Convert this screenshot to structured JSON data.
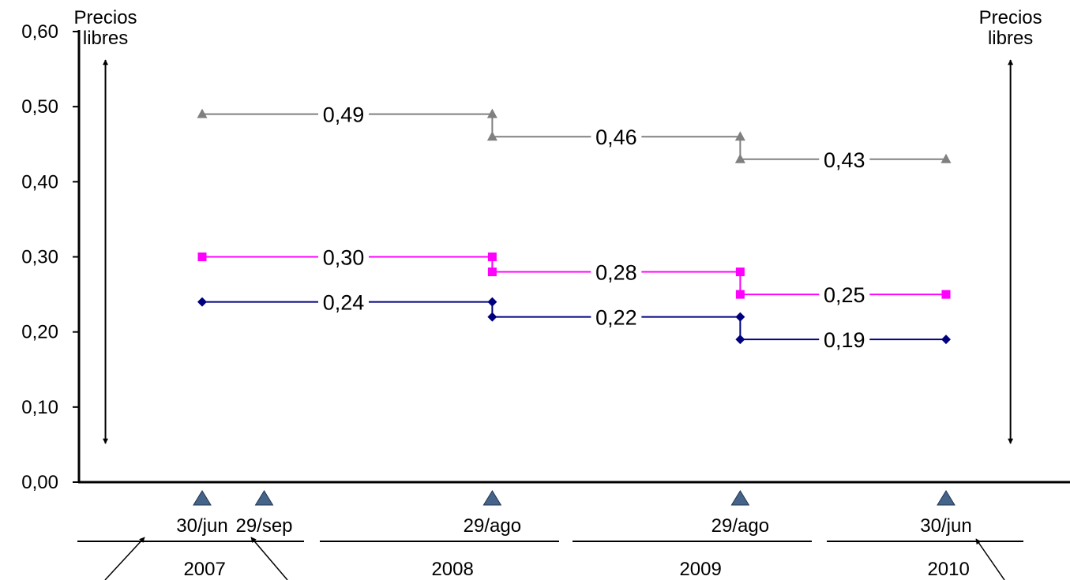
{
  "chart_data": {
    "type": "line",
    "step": true,
    "ylim": [
      0,
      0.6
    ],
    "yticks": [
      "0,00",
      "0,10",
      "0,20",
      "0,30",
      "0,40",
      "0,50",
      "0,60"
    ],
    "grid": false,
    "legend": "none",
    "series": [
      {
        "color": "#808080",
        "marker": "triangle",
        "points": [
          [
            2007.49,
            0.49
          ],
          [
            2008.66,
            0.49
          ],
          [
            2008.66,
            0.46
          ],
          [
            2009.66,
            0.46
          ],
          [
            2009.66,
            0.43
          ],
          [
            2010.49,
            0.43
          ]
        ],
        "labels": [
          {
            "text": "0,49",
            "x": 2008.06,
            "y": 0.49
          },
          {
            "text": "0,46",
            "x": 2009.16,
            "y": 0.46
          },
          {
            "text": "0,43",
            "x": 2010.08,
            "y": 0.43
          }
        ]
      },
      {
        "color": "#ff00ff",
        "marker": "square",
        "points": [
          [
            2007.49,
            0.3
          ],
          [
            2008.66,
            0.3
          ],
          [
            2008.66,
            0.28
          ],
          [
            2009.66,
            0.28
          ],
          [
            2009.66,
            0.25
          ],
          [
            2010.49,
            0.25
          ]
        ],
        "labels": [
          {
            "text": "0,30",
            "x": 2008.06,
            "y": 0.3
          },
          {
            "text": "0,28",
            "x": 2009.16,
            "y": 0.28
          },
          {
            "text": "0,25",
            "x": 2010.08,
            "y": 0.25
          }
        ]
      },
      {
        "color": "#00007f",
        "marker": "diamond",
        "points": [
          [
            2007.49,
            0.24
          ],
          [
            2008.66,
            0.24
          ],
          [
            2008.66,
            0.22
          ],
          [
            2009.66,
            0.22
          ],
          [
            2009.66,
            0.19
          ],
          [
            2010.49,
            0.19
          ]
        ],
        "labels": [
          {
            "text": "0,24",
            "x": 2008.06,
            "y": 0.24
          },
          {
            "text": "0,22",
            "x": 2009.16,
            "y": 0.22
          },
          {
            "text": "0,19",
            "x": 2010.08,
            "y": 0.19
          }
        ]
      }
    ],
    "annotations": [
      {
        "text": [
          "Precios",
          "libres"
        ],
        "x": 2007.1
      },
      {
        "text": [
          "Precios",
          "libres"
        ],
        "x": 2010.75
      }
    ],
    "dates": [
      {
        "label": "30/jun",
        "x": 2007.49
      },
      {
        "label": "29/sep",
        "x": 2007.74
      },
      {
        "label": "29/ago",
        "x": 2008.66
      },
      {
        "label": "29/ago",
        "x": 2009.66
      },
      {
        "label": "30/jun",
        "x": 2010.49
      }
    ],
    "years": [
      {
        "label": "2007",
        "x": 2007.5
      },
      {
        "label": "2008",
        "x": 2008.5
      },
      {
        "label": "2009",
        "x": 2009.5
      },
      {
        "label": "2010",
        "x": 2010.5
      }
    ]
  }
}
